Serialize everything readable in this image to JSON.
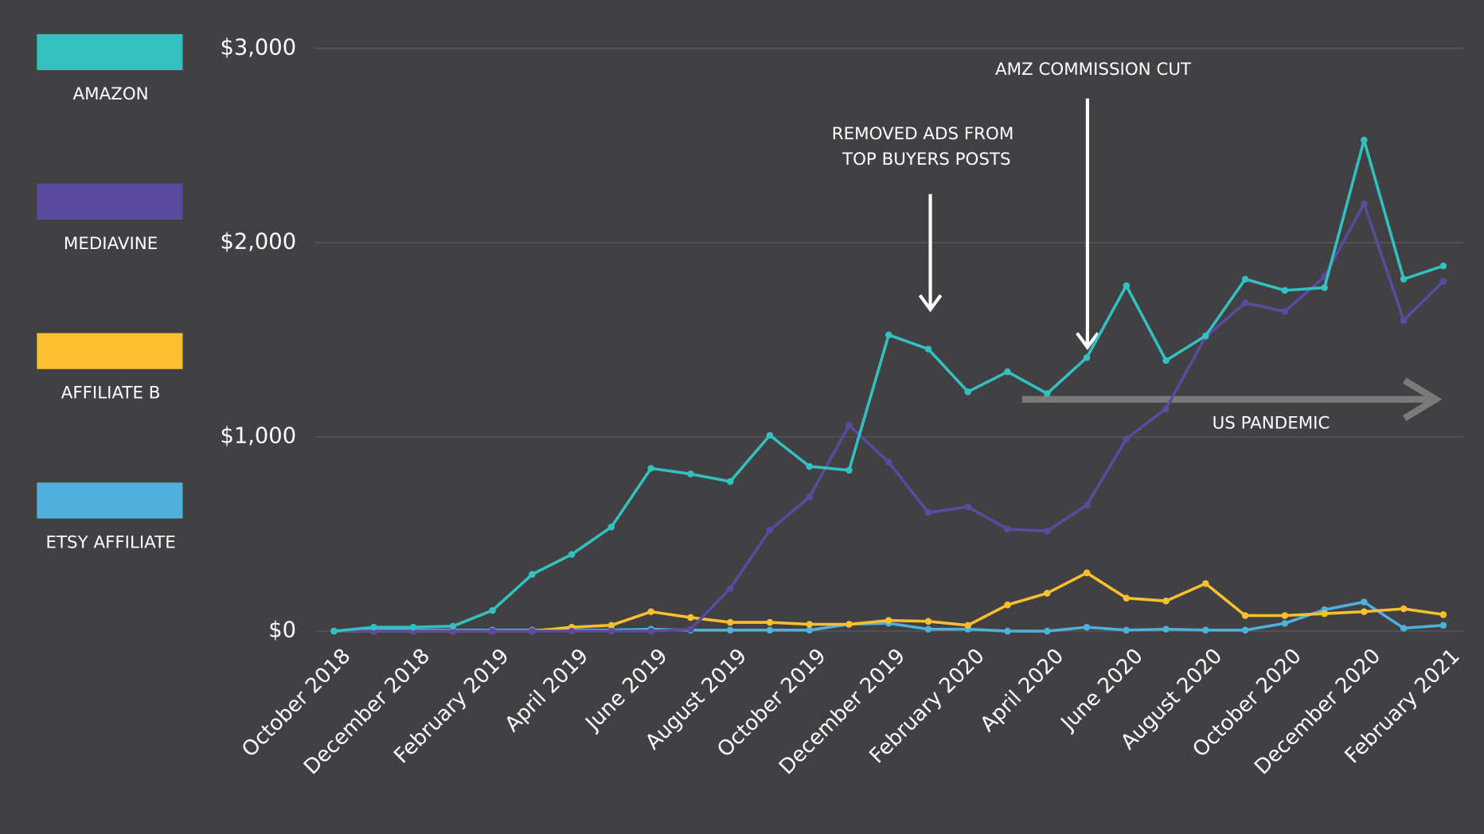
{
  "chart_data": {
    "type": "line",
    "categories": [
      "October 2018",
      null,
      "December 2018",
      null,
      "February 2019",
      null,
      "April 2019",
      null,
      "June 2019",
      null,
      "August 2019",
      null,
      "October 2019",
      null,
      "December 2019",
      null,
      "February 2020",
      null,
      "April 2020",
      null,
      "June 2020",
      null,
      "August 2020",
      null,
      "October 2020",
      null,
      "December 2020",
      null,
      "February 2021"
    ],
    "series": [
      {
        "name": "AMAZON",
        "color": "#35c0c0",
        "values": [
          0,
          20,
          20,
          25,
          107,
          292,
          395,
          536,
          838,
          809,
          770,
          1008,
          848,
          828,
          1525,
          1452,
          1232,
          1335,
          1223,
          1408,
          1778,
          1393,
          1520,
          1812,
          1754,
          1768,
          2528,
          1812,
          1880
        ]
      },
      {
        "name": "MEDIAVINE",
        "color": "#5b4aa0",
        "values": [
          0,
          0,
          0,
          0,
          0,
          0,
          0,
          0,
          0,
          10,
          220,
          520,
          690,
          1060,
          870,
          610,
          640,
          525,
          515,
          648,
          990,
          1145,
          1515,
          1690,
          1645,
          1825,
          2200,
          1600,
          1800
        ]
      },
      {
        "name": "AFFILIATE B",
        "color": "#fbbf2f",
        "values": [
          0,
          0,
          0,
          0,
          0,
          0,
          20,
          30,
          100,
          70,
          45,
          45,
          35,
          35,
          55,
          50,
          30,
          135,
          195,
          300,
          170,
          155,
          245,
          80,
          80,
          90,
          100,
          115,
          85
        ]
      },
      {
        "name": "ETSY AFFILIATE",
        "color": "#4fb0de",
        "values": [
          0,
          5,
          5,
          5,
          5,
          5,
          5,
          5,
          10,
          5,
          5,
          5,
          5,
          35,
          40,
          10,
          10,
          0,
          0,
          20,
          5,
          10,
          5,
          5,
          40,
          110,
          150,
          15,
          30
        ]
      }
    ],
    "ylim": [
      0,
      3000
    ],
    "yticks": [
      {
        "value": 0,
        "label": "$0"
      },
      {
        "value": 1000,
        "label": "$1,000"
      },
      {
        "value": 2000,
        "label": "$2,000"
      },
      {
        "value": 3000,
        "label": "$3,000"
      }
    ],
    "grid": true,
    "legend": "left",
    "annotations": {
      "amz_cut": "AMZ COMMISSION CUT",
      "removed_ads": [
        "REMOVED ADS FROM",
        "TOP BUYERS POSTS"
      ],
      "pandemic": "US PANDEMIC"
    }
  }
}
